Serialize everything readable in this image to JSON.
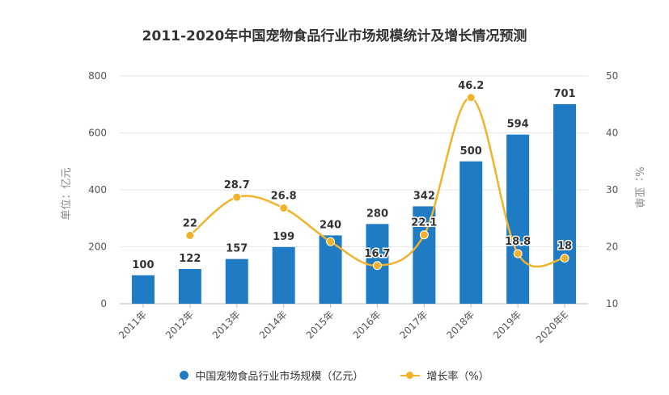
{
  "title": "2011-2020年中国宠物食品行业市场规模统计及增长情况预测",
  "colors": {
    "bar": "#1f7bc4",
    "line": "#f0b32b",
    "axis": "#cccccc",
    "text": "#555555"
  },
  "legend": {
    "bar_label": "中国宠物食品行业市场规模（亿元）",
    "line_label": "增长率（%）"
  },
  "chart_data": {
    "type": "bar",
    "categories": [
      "2011年",
      "2012年",
      "2013年",
      "2014年",
      "2015年",
      "2016年",
      "2017年",
      "2018年",
      "2019年",
      "2020年E"
    ],
    "series": [
      {
        "name": "中国宠物食品行业市场规模（亿元）",
        "type": "bar",
        "axis": "left",
        "values": [
          100,
          122,
          157,
          199,
          240,
          280,
          342,
          500,
          594,
          701
        ]
      },
      {
        "name": "增长率（%）",
        "type": "line",
        "axis": "right",
        "values": [
          null,
          22,
          28.7,
          26.8,
          20.9,
          16.7,
          22.1,
          46.2,
          18.8,
          18
        ],
        "labels": [
          null,
          "22",
          "28.7",
          "26.8",
          null,
          "16.7",
          "22.1",
          "46.2",
          "18.8",
          "18"
        ]
      }
    ],
    "ylabel": "单位：亿元",
    "y2label": "%：亚单",
    "ylim": [
      0,
      800
    ],
    "y2lim": [
      10,
      50
    ],
    "yticks": [
      0,
      200,
      400,
      600,
      800
    ],
    "y2ticks": [
      10,
      20,
      30,
      40,
      50
    ],
    "grid": true,
    "legend_position": "bottom"
  }
}
